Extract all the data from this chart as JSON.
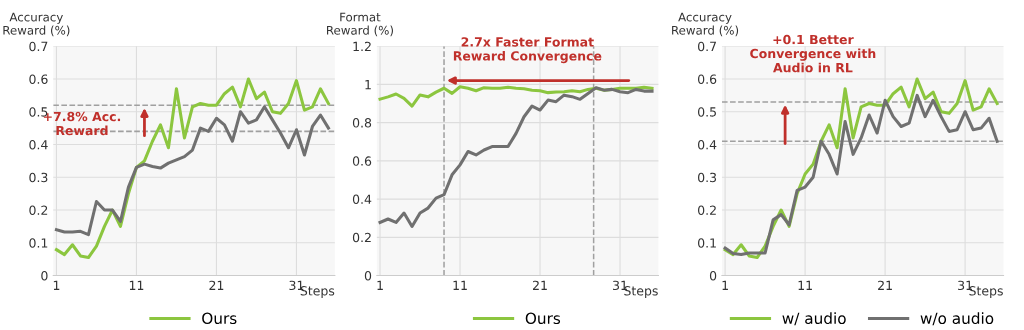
{
  "chart_data": [
    {
      "type": "line",
      "xlabel": "Steps",
      "ylabel": "Accuracy\nReward (%)",
      "x": [
        1,
        2,
        3,
        4,
        5,
        6,
        7,
        8,
        9,
        10,
        11,
        12,
        13,
        14,
        15,
        16,
        17,
        18,
        19,
        20,
        21,
        22,
        23,
        24,
        25,
        26,
        27,
        28,
        29,
        30,
        31,
        32,
        33,
        34,
        35
      ],
      "xlim": [
        0.6,
        35.8
      ],
      "xticks": [
        1,
        11,
        21,
        31
      ],
      "ylim": [
        0,
        0.7
      ],
      "yticks": [
        0,
        0.1,
        0.2,
        0.3,
        0.4,
        0.5,
        0.6,
        0.7
      ],
      "grid": true,
      "legend": "bottom",
      "line_style": "solid",
      "series": [
        {
          "name": "Ours",
          "color": "#8cc63f",
          "values": [
            0.079,
            0.064,
            0.094,
            0.06,
            0.055,
            0.09,
            0.15,
            0.2,
            0.15,
            0.25,
            0.33,
            0.35,
            0.41,
            0.46,
            0.39,
            0.57,
            0.42,
            0.515,
            0.525,
            0.52,
            0.52,
            0.555,
            0.575,
            0.515,
            0.6,
            0.54,
            0.56,
            0.5,
            0.495,
            0.525,
            0.595,
            0.505,
            0.515,
            0.57,
            0.525
          ]
        },
        {
          "color": "#707070",
          "values": [
            0.14,
            0.133,
            0.133,
            0.135,
            0.125,
            0.226,
            0.2,
            0.2,
            0.165,
            0.27,
            0.33,
            0.34,
            0.333,
            0.328,
            0.343,
            0.353,
            0.363,
            0.383,
            0.45,
            0.44,
            0.48,
            0.46,
            0.41,
            0.5,
            0.465,
            0.475,
            0.515,
            0.475,
            0.435,
            0.39,
            0.445,
            0.368,
            0.455,
            0.49,
            0.45
          ]
        }
      ],
      "ref_lines": [
        {
          "axis": "y",
          "value": 0.52,
          "color": "#a0a0a0",
          "line_style": "dashed"
        },
        {
          "axis": "y",
          "value": 0.44,
          "color": "#a0a0a0",
          "line_style": "dashed"
        }
      ],
      "annotations": [
        {
          "text": "+7.8% Acc.\nReward",
          "x": 12,
          "y": 0.52
        }
      ]
    },
    {
      "type": "line",
      "xlabel": "Steps",
      "ylabel": "Format\nReward (%)",
      "x": [
        1,
        2,
        3,
        4,
        5,
        6,
        7,
        8,
        9,
        10,
        11,
        12,
        13,
        14,
        15,
        16,
        17,
        18,
        19,
        20,
        21,
        22,
        23,
        24,
        25,
        26,
        27,
        28,
        29,
        30,
        31,
        32,
        33,
        34,
        35
      ],
      "xlim": [
        0.6,
        35.8
      ],
      "xticks": [
        1,
        11,
        21,
        31
      ],
      "ylim": [
        0,
        1.2
      ],
      "yticks": [
        0,
        0.2,
        0.4,
        0.6,
        0.8,
        1,
        1.2
      ],
      "grid": true,
      "legend": "bottom",
      "line_style": "solid",
      "series": [
        {
          "name": "Ours",
          "color": "#8cc63f",
          "values": [
            0.923,
            0.935,
            0.95,
            0.927,
            0.887,
            0.945,
            0.935,
            0.96,
            0.98,
            0.953,
            0.988,
            0.98,
            0.967,
            0.983,
            0.98,
            0.98,
            0.985,
            0.98,
            0.977,
            0.97,
            0.967,
            0.957,
            0.96,
            0.962,
            0.967,
            0.962,
            0.974,
            0.98,
            0.97,
            0.974,
            0.98,
            0.98,
            0.98,
            0.985,
            0.98
          ]
        },
        {
          "color": "#707070",
          "values": [
            0.278,
            0.296,
            0.278,
            0.327,
            0.257,
            0.327,
            0.353,
            0.405,
            0.423,
            0.527,
            0.579,
            0.649,
            0.631,
            0.657,
            0.675,
            0.675,
            0.675,
            0.744,
            0.831,
            0.887,
            0.866,
            0.918,
            0.91,
            0.944,
            0.936,
            0.922,
            0.953,
            0.983,
            0.97,
            0.974,
            0.962,
            0.957,
            0.974,
            0.965,
            0.965
          ]
        }
      ],
      "ref_lines": [
        {
          "axis": "x",
          "value": 9,
          "color": "#a0a0a0",
          "line_style": "dashed"
        },
        {
          "axis": "x",
          "value": 27.7,
          "color": "#a0a0a0",
          "line_style": "dashed"
        }
      ],
      "annotations": [
        {
          "text": "2.7x Faster Format\nReward Convergence",
          "x": 9,
          "y": 1.02
        }
      ]
    },
    {
      "type": "line",
      "xlabel": "Steps",
      "ylabel": "Accuracy\nReward (%)",
      "x": [
        1,
        2,
        3,
        4,
        5,
        6,
        7,
        8,
        9,
        10,
        11,
        12,
        13,
        14,
        15,
        16,
        17,
        18,
        19,
        20,
        21,
        22,
        23,
        24,
        25,
        26,
        27,
        28,
        29,
        30,
        31,
        32,
        33,
        34,
        35
      ],
      "xlim": [
        0.6,
        35.8
      ],
      "xticks": [
        1,
        11,
        21,
        31
      ],
      "ylim": [
        0,
        0.7
      ],
      "yticks": [
        0,
        0.1,
        0.2,
        0.3,
        0.4,
        0.5,
        0.6,
        0.7
      ],
      "grid": true,
      "legend": "bottom",
      "line_style": "solid",
      "series": [
        {
          "name": "w/ audio",
          "color": "#8cc63f",
          "values": [
            0.079,
            0.064,
            0.094,
            0.06,
            0.055,
            0.09,
            0.15,
            0.2,
            0.15,
            0.25,
            0.31,
            0.34,
            0.41,
            0.46,
            0.39,
            0.57,
            0.42,
            0.515,
            0.525,
            0.52,
            0.52,
            0.555,
            0.575,
            0.515,
            0.6,
            0.54,
            0.56,
            0.5,
            0.495,
            0.525,
            0.595,
            0.505,
            0.515,
            0.57,
            0.525
          ]
        },
        {
          "name": "w/o audio",
          "color": "#707070",
          "values": [
            0.084,
            0.067,
            0.064,
            0.069,
            0.069,
            0.069,
            0.17,
            0.186,
            0.155,
            0.26,
            0.27,
            0.3,
            0.41,
            0.37,
            0.31,
            0.47,
            0.37,
            0.42,
            0.49,
            0.435,
            0.535,
            0.485,
            0.455,
            0.465,
            0.55,
            0.485,
            0.535,
            0.485,
            0.44,
            0.445,
            0.5,
            0.445,
            0.45,
            0.48,
            0.41
          ]
        }
      ],
      "ref_lines": [
        {
          "axis": "y",
          "value": 0.53,
          "color": "#a0a0a0",
          "line_style": "dashed"
        },
        {
          "axis": "y",
          "value": 0.41,
          "color": "#a0a0a0",
          "line_style": "dashed"
        }
      ],
      "annotations": [
        {
          "text": "+0.1 Better\nConvergence with\nAudio in RL",
          "x": 8.5,
          "y": 0.53
        }
      ]
    }
  ]
}
